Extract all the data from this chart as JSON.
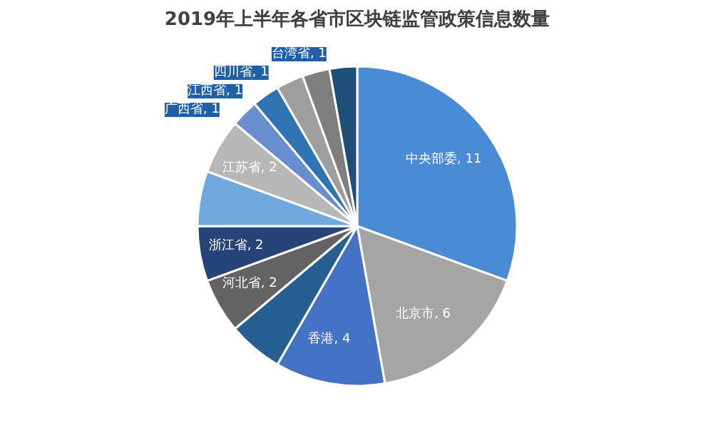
{
  "chart_data": {
    "type": "pie",
    "title": "2019年上半年各省市区块链监管政策信息数量",
    "categories": [
      "中央部委",
      "北京市",
      "香港",
      null,
      "河北省",
      "浙江省",
      null,
      "江苏省",
      "广西省",
      "江西省",
      "四川省",
      null,
      "台湾省"
    ],
    "values": [
      11,
      6,
      4,
      2,
      2,
      2,
      2,
      2,
      1,
      1,
      1,
      1,
      1
    ],
    "value_labels": [
      ", 11",
      ", 6",
      ", 4",
      null,
      ", 2",
      ", 2",
      null,
      ", 2",
      ", 1",
      ", 1",
      ", 1",
      null,
      ", 1"
    ],
    "colors": [
      "#4a8bd6",
      "#a5a5a5",
      "#4472c4",
      "#255e91",
      "#636363",
      "#264478",
      "#6fa8dc",
      "#b7b7b7",
      "#698ed0",
      "#2f75b5",
      "#9e9e9e",
      "#7f7f7f",
      "#1f4e79"
    ]
  }
}
